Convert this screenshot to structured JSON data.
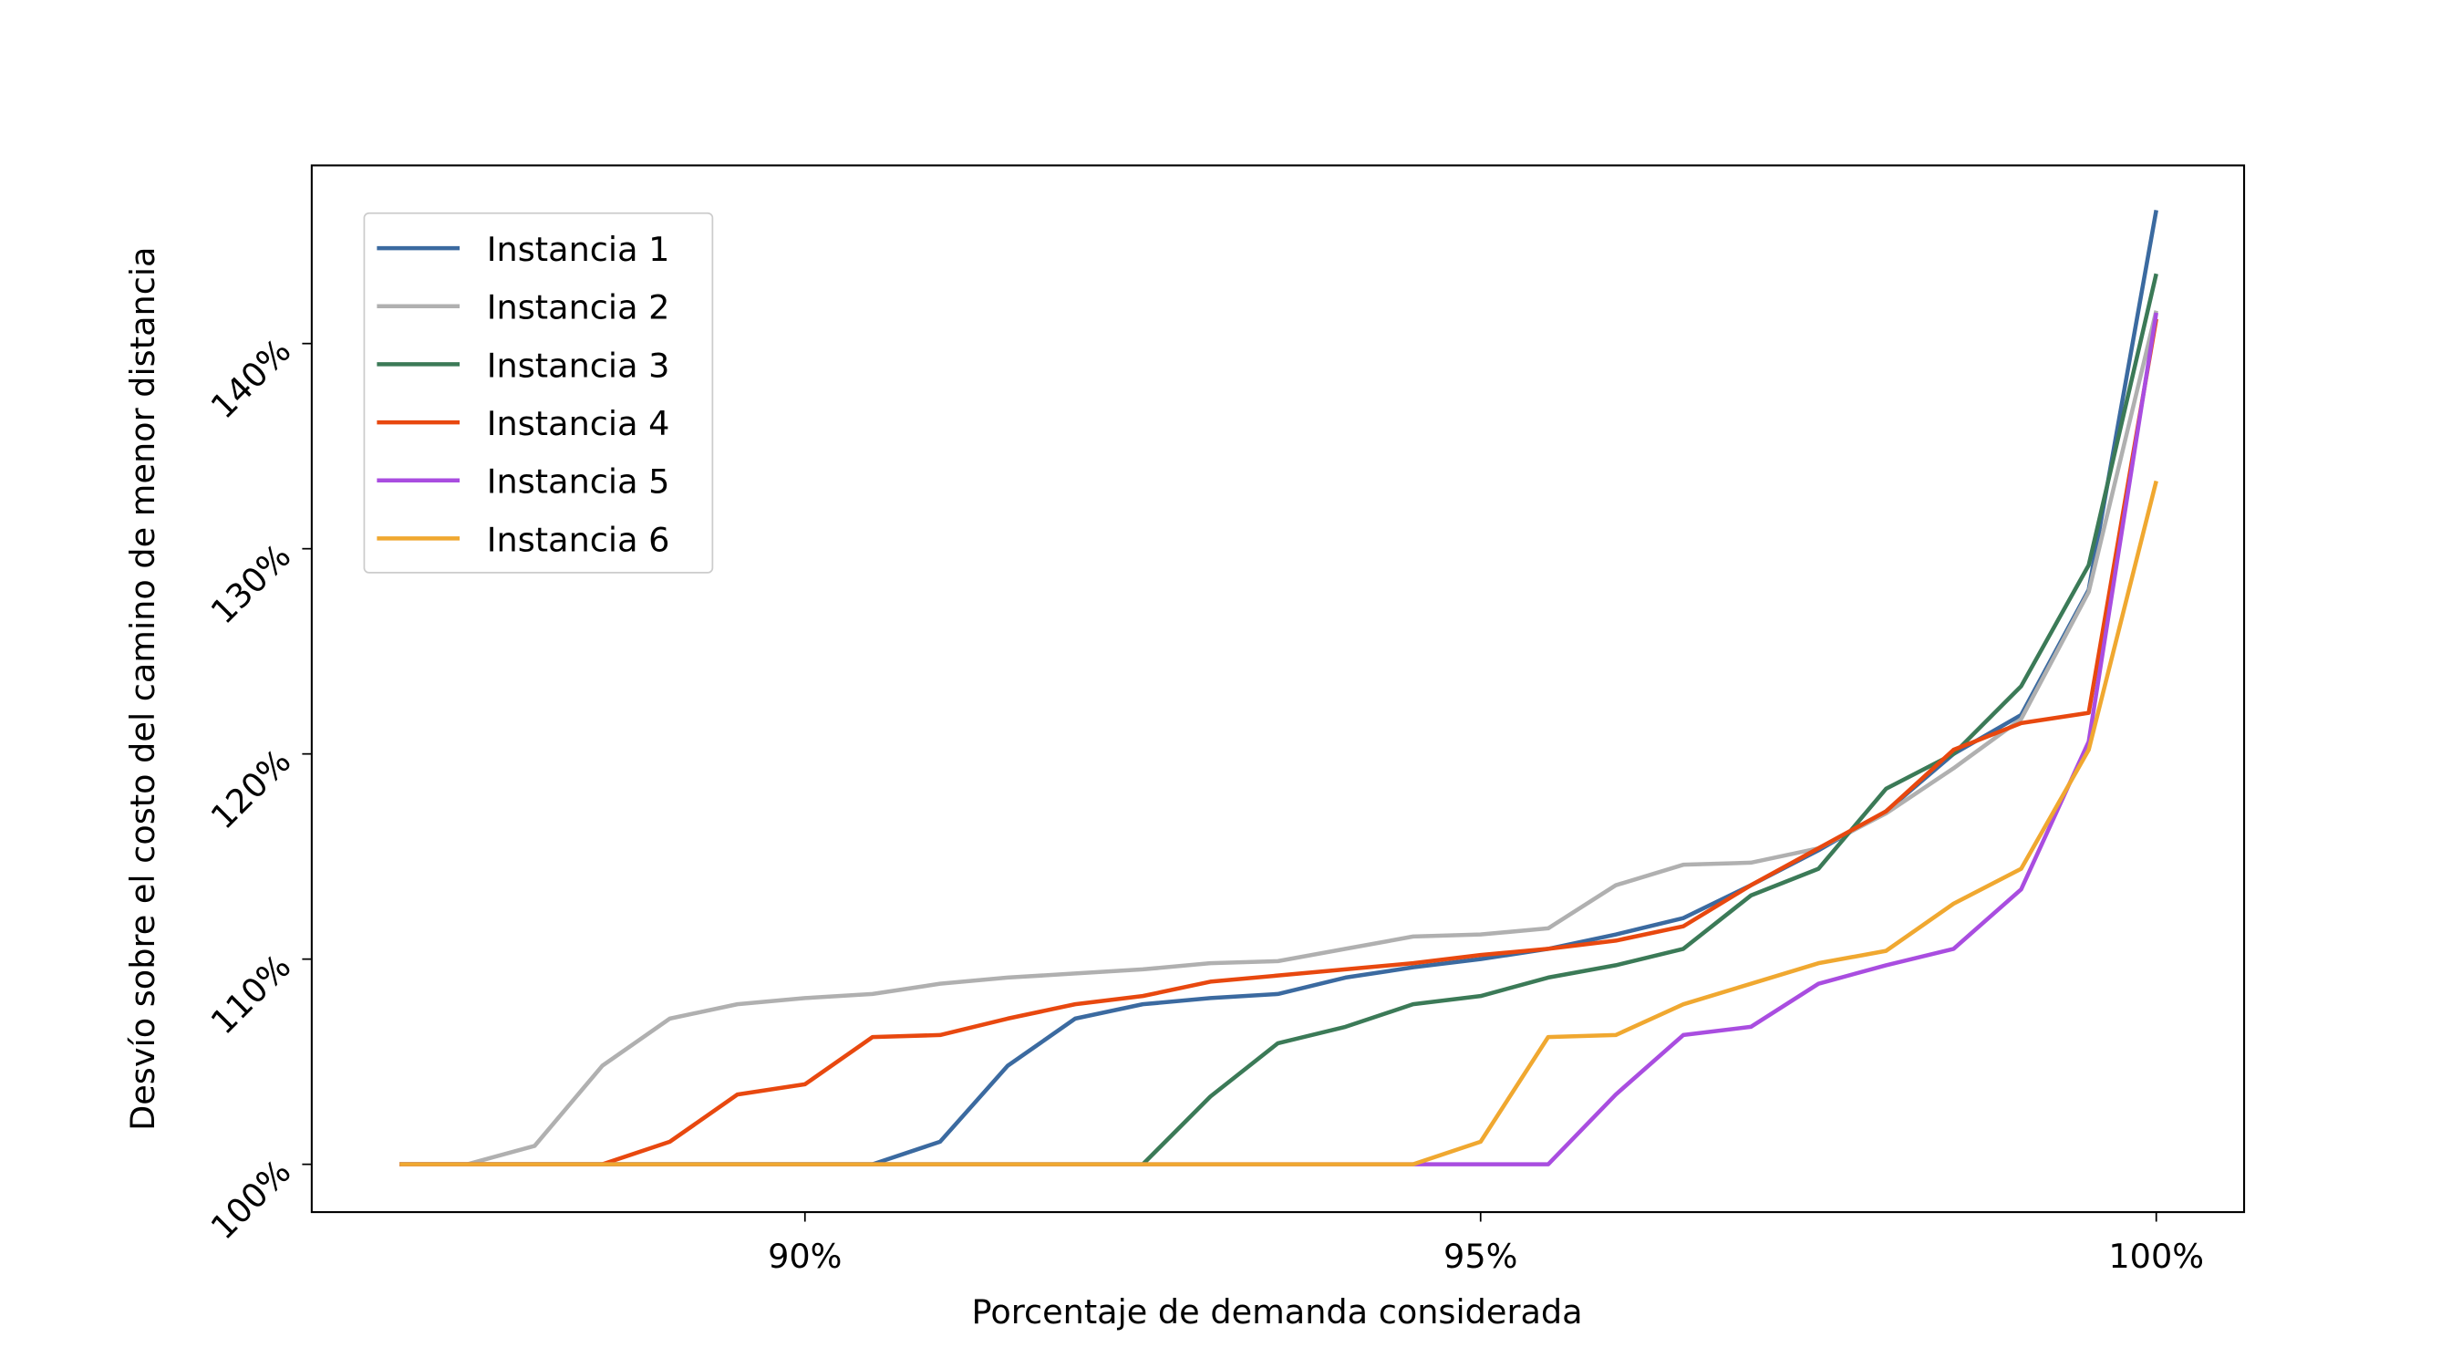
{
  "chart_data": {
    "type": "line",
    "x_label": "Porcentaje de demanda considerada",
    "y_label": "Desvío sobre el costo del camino de menor distancia",
    "x": [
      87,
      87.5,
      88,
      88.5,
      89,
      89.5,
      90,
      90.5,
      91,
      91.5,
      92,
      92.5,
      93,
      93.5,
      94,
      94.5,
      95,
      95.5,
      96,
      96.5,
      97,
      97.5,
      98,
      98.5,
      99,
      99.5,
      100
    ],
    "series": [
      {
        "name": "Instancia 1",
        "color": "#3b6aa0",
        "values": [
          100,
          100,
          100,
          100,
          100,
          100,
          100,
          100,
          101.1,
          104.8,
          107.1,
          107.8,
          108.1,
          108.3,
          109.1,
          109.6,
          110.0,
          110.5,
          111.2,
          112.0,
          113.6,
          115.3,
          117.2,
          120.0,
          121.9,
          128.0,
          146.5
        ]
      },
      {
        "name": "Instancia 2",
        "color": "#b0b0b0",
        "values": [
          100,
          100,
          100.9,
          104.8,
          107.1,
          107.8,
          108.1,
          108.3,
          108.8,
          109.1,
          109.3,
          109.5,
          109.8,
          109.9,
          110.5,
          111.1,
          111.2,
          111.5,
          113.6,
          114.6,
          114.7,
          115.4,
          117.1,
          119.3,
          121.7,
          127.9,
          141.6
        ]
      },
      {
        "name": "Instancia 3",
        "color": "#3b7a57",
        "values": [
          100,
          100,
          100,
          100,
          100,
          100,
          100,
          100,
          100,
          100,
          100,
          100,
          103.3,
          105.9,
          106.7,
          107.8,
          108.2,
          109.1,
          109.7,
          110.5,
          113.1,
          114.4,
          118.3,
          120.0,
          123.3,
          129.2,
          143.4
        ]
      },
      {
        "name": "Instancia 4",
        "color": "#e8480f",
        "values": [
          100,
          100,
          100,
          100,
          101.1,
          103.4,
          103.9,
          106.2,
          106.3,
          107.1,
          107.8,
          108.2,
          108.9,
          109.2,
          109.5,
          109.8,
          110.2,
          110.5,
          110.9,
          111.6,
          113.6,
          115.4,
          117.2,
          120.2,
          121.5,
          122.0,
          141.2
        ]
      },
      {
        "name": "Instancia 5",
        "color": "#a94de0",
        "values": [
          100,
          100,
          100,
          100,
          100,
          100,
          100,
          100,
          100,
          100,
          100,
          100,
          100,
          100,
          100,
          100,
          100,
          100,
          103.4,
          106.3,
          106.7,
          108.8,
          109.7,
          110.5,
          113.4,
          120.6,
          141.5
        ]
      },
      {
        "name": "Instancia 6",
        "color": "#f0a830",
        "values": [
          100,
          100,
          100,
          100,
          100,
          100,
          100,
          100,
          100,
          100,
          100,
          100,
          100,
          100,
          100,
          100,
          101.1,
          106.2,
          106.3,
          107.8,
          108.8,
          109.8,
          110.4,
          112.7,
          114.4,
          120.2,
          133.3
        ]
      }
    ],
    "xlim": [
      86.35,
      100.65
    ],
    "ylim": [
      97.67,
      148.68
    ],
    "xticks": [
      {
        "value": 90,
        "label": "90%"
      },
      {
        "value": 95,
        "label": "95%"
      },
      {
        "value": 100,
        "label": "100%"
      }
    ],
    "yticks": [
      {
        "value": 100,
        "label": "100%"
      },
      {
        "value": 110,
        "label": "110%"
      },
      {
        "value": 120,
        "label": "120%"
      },
      {
        "value": 130,
        "label": "130%"
      },
      {
        "value": 140,
        "label": "140%"
      }
    ],
    "legend": "upper left",
    "grid": false
  }
}
